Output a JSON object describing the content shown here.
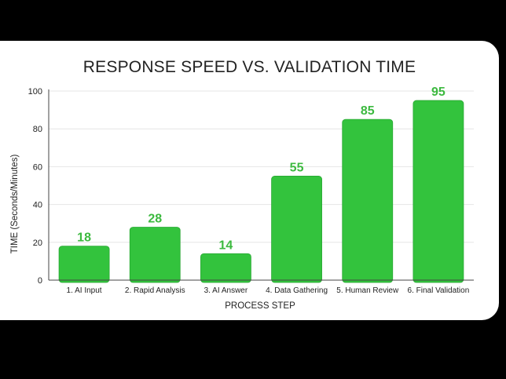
{
  "chart_data": {
    "type": "bar",
    "title": "RESPONSE SPEED VS. VALIDATION TIME",
    "xlabel": "PROCESS STEP",
    "ylabel": "TIME (Seconds/Minutes)",
    "categories": [
      "1. AI Input",
      "2. Rapid Analysis",
      "3. AI Answer",
      "4. Data Gathering",
      "5. Human Review",
      "6. Final Validation"
    ],
    "values": [
      18,
      28,
      14,
      55,
      85,
      95
    ],
    "data_labels": [
      "18",
      "28",
      "14",
      "55",
      "85",
      "95"
    ],
    "ylim": [
      0,
      100
    ],
    "yticks": [
      0,
      20,
      40,
      60,
      80,
      100
    ],
    "grid": true,
    "colors": {
      "bar": "#33c33d",
      "bar_edge": "#2aa834",
      "label": "#3cb93f",
      "grid": "#e6e6e6",
      "axis": "#444444"
    }
  }
}
